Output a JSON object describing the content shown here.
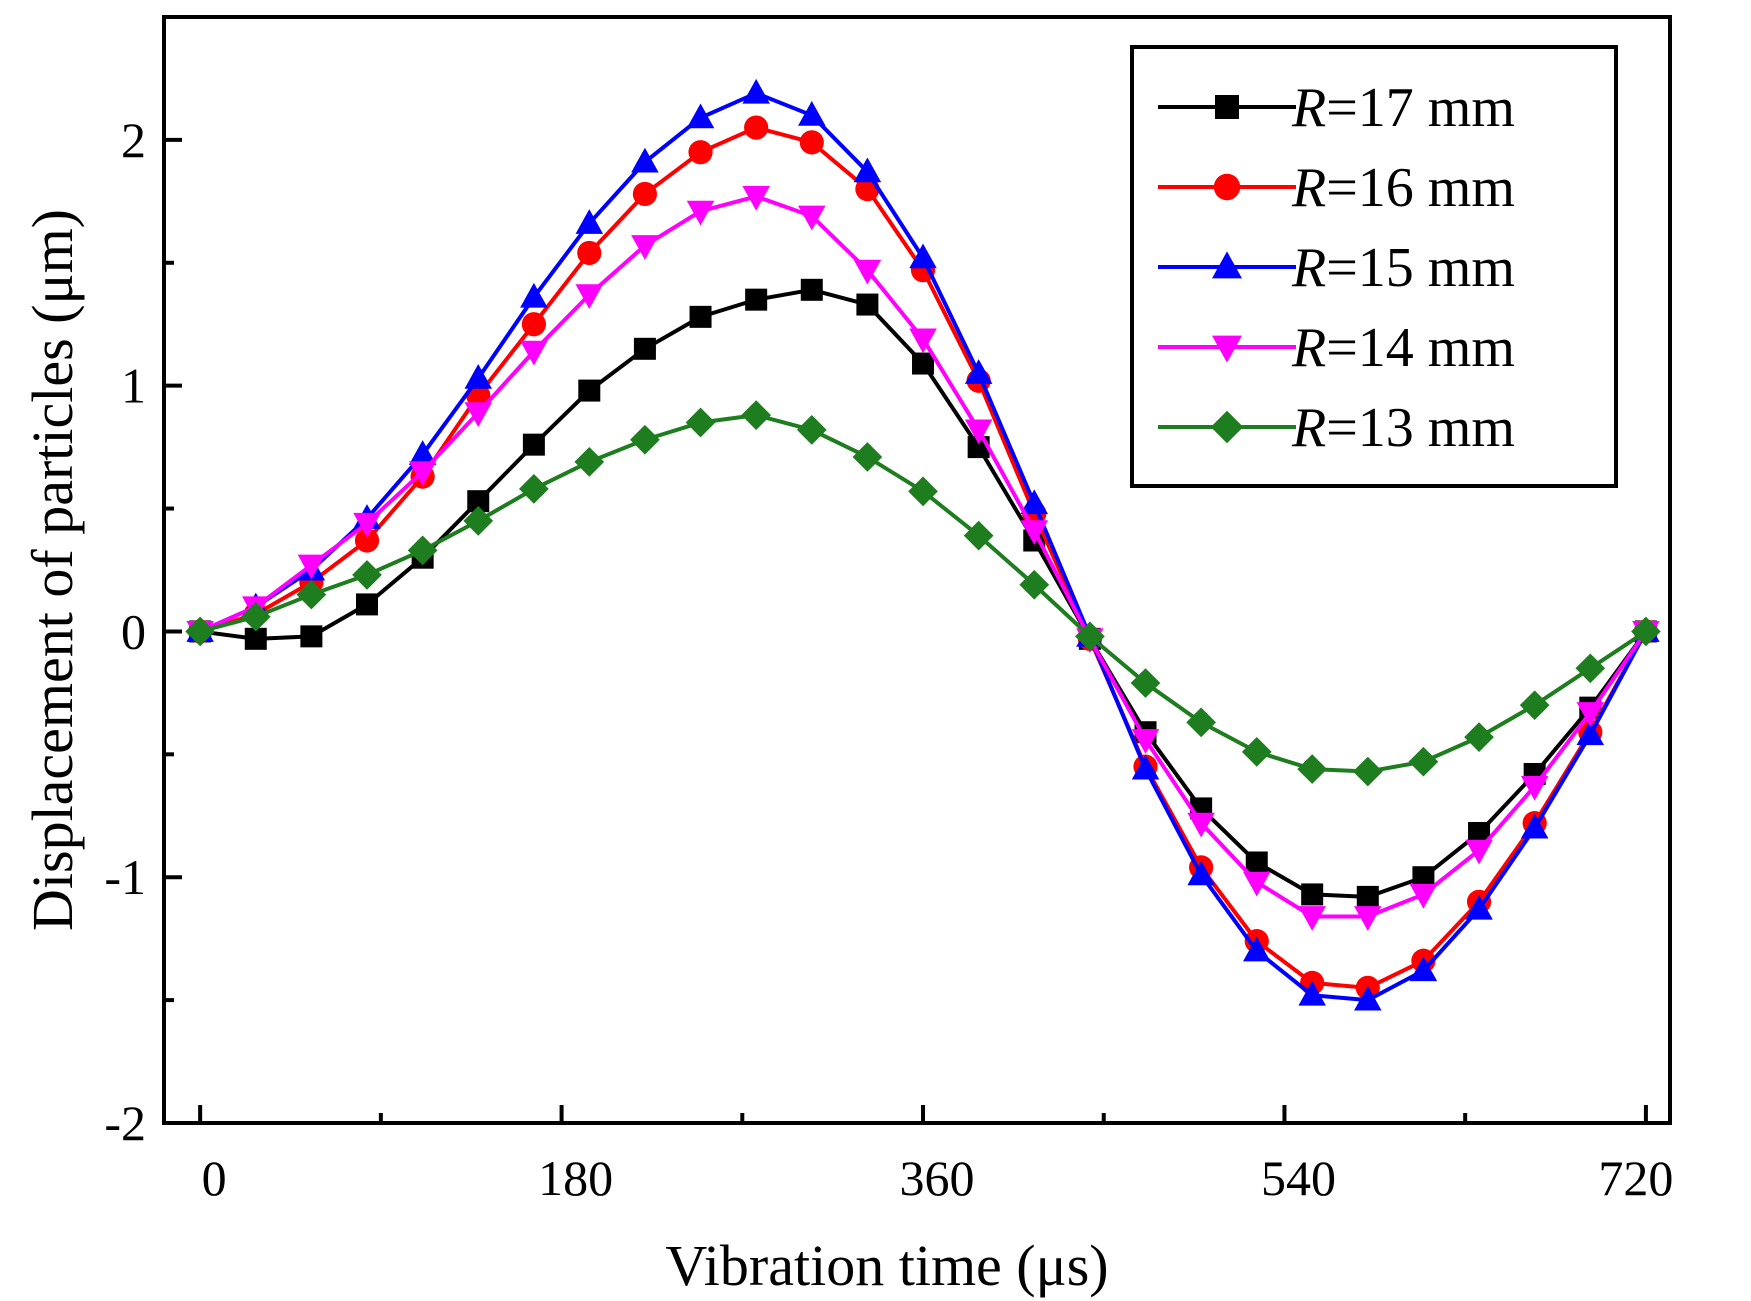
{
  "chart_data": {
    "type": "line",
    "xlabel": "Vibration time (μs)",
    "ylabel": "Displacement of particles (μm)",
    "xlim": [
      -18,
      732
    ],
    "ylim": [
      -2,
      2.5
    ],
    "x_ticks": [
      0,
      180,
      360,
      540,
      720
    ],
    "x_tick_labels": [
      "0",
      "180",
      "360",
      "540",
      "720"
    ],
    "y_ticks": [
      -2,
      -1,
      0,
      1,
      2
    ],
    "y_tick_labels": [
      "-2",
      "-1",
      "0",
      "1",
      "2"
    ],
    "grid": false,
    "legend_position": "top-right",
    "x": [
      0,
      27.7,
      55.4,
      83.1,
      110.8,
      138.5,
      166.2,
      193.8,
      221.5,
      249.2,
      276.9,
      304.6,
      332.3,
      360,
      387.7,
      415.4,
      443.1,
      470.8,
      498.5,
      526.2,
      553.8,
      581.5,
      609.2,
      636.9,
      664.6,
      692.3,
      720
    ],
    "series": [
      {
        "name_prefix": "R",
        "name_suffix": "=17 mm",
        "color": "#000000",
        "marker": "square",
        "values": [
          0,
          -0.03,
          -0.02,
          0.11,
          0.3,
          0.53,
          0.76,
          0.98,
          1.15,
          1.28,
          1.35,
          1.39,
          1.33,
          1.09,
          0.75,
          0.37,
          -0.03,
          -0.41,
          -0.72,
          -0.94,
          -1.07,
          -1.08,
          -1.0,
          -0.82,
          -0.58,
          -0.31,
          0
        ]
      },
      {
        "name_prefix": "R",
        "name_suffix": "=16 mm",
        "color": "#ff0000",
        "marker": "circle",
        "values": [
          0,
          0.07,
          0.2,
          0.37,
          0.63,
          0.96,
          1.25,
          1.54,
          1.78,
          1.95,
          2.05,
          1.99,
          1.8,
          1.47,
          1.02,
          0.48,
          -0.03,
          -0.55,
          -0.96,
          -1.26,
          -1.43,
          -1.45,
          -1.34,
          -1.1,
          -0.78,
          -0.41,
          0
        ]
      },
      {
        "name_prefix": "R",
        "name_suffix": "=15 mm",
        "color": "#0000ff",
        "marker": "triangle-up",
        "values": [
          0,
          0.1,
          0.25,
          0.46,
          0.72,
          1.03,
          1.36,
          1.66,
          1.91,
          2.09,
          2.19,
          2.1,
          1.87,
          1.52,
          1.05,
          0.52,
          -0.02,
          -0.56,
          -0.99,
          -1.3,
          -1.48,
          -1.5,
          -1.38,
          -1.13,
          -0.8,
          -0.42,
          0
        ]
      },
      {
        "name_prefix": "R",
        "name_suffix": "=14 mm",
        "color": "#ff00ff",
        "marker": "triangle-down",
        "values": [
          0,
          0.1,
          0.27,
          0.44,
          0.65,
          0.89,
          1.14,
          1.37,
          1.57,
          1.71,
          1.77,
          1.69,
          1.47,
          1.19,
          0.82,
          0.41,
          -0.03,
          -0.44,
          -0.78,
          -1.02,
          -1.16,
          -1.16,
          -1.07,
          -0.89,
          -0.63,
          -0.33,
          0
        ]
      },
      {
        "name_prefix": "R",
        "name_suffix": "=13 mm",
        "color": "#1e7d1e",
        "marker": "diamond",
        "values": [
          0,
          0.06,
          0.15,
          0.23,
          0.33,
          0.45,
          0.58,
          0.69,
          0.78,
          0.85,
          0.88,
          0.82,
          0.71,
          0.57,
          0.39,
          0.19,
          -0.02,
          -0.21,
          -0.37,
          -0.49,
          -0.56,
          -0.57,
          -0.53,
          -0.43,
          -0.3,
          -0.15,
          0
        ]
      }
    ]
  }
}
